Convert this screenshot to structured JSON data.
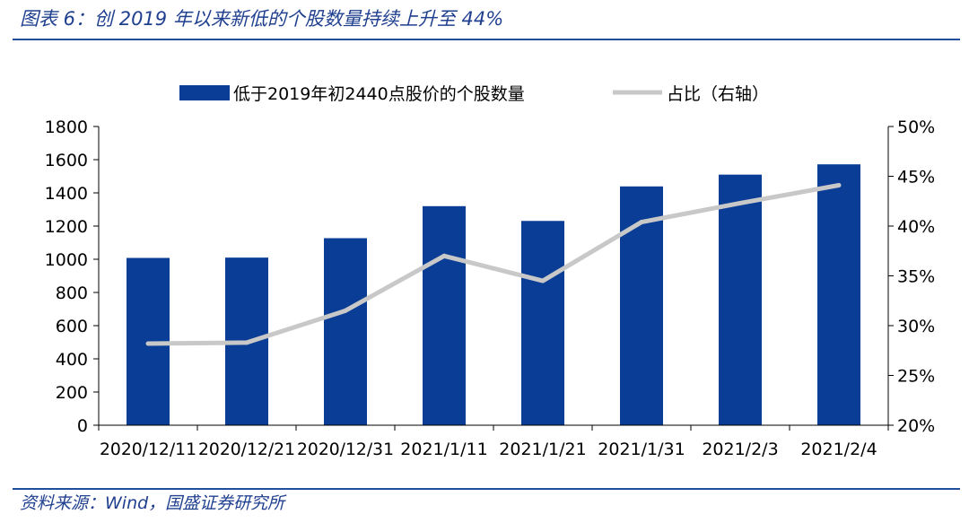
{
  "figure": {
    "title": "图表 6：创 2019 年以来新低的个股数量持续上升至 44%",
    "source": "资料来源：Wind，国盛证券研究所"
  },
  "colors": {
    "bar": "#0a3d96",
    "line": "#c8c8c8",
    "heading": "#1f3f8f",
    "rule": "#1f4e9a"
  },
  "chart_data": {
    "type": "bar",
    "categories": [
      "2020/12/11",
      "2020/12/21",
      "2020/12/31",
      "2021/1/11",
      "2021/1/21",
      "2021/1/31",
      "2021/2/3",
      "2021/2/4"
    ],
    "series": [
      {
        "name": "低于2019年初2440点股价的个股数量",
        "type": "bar",
        "axis": "left",
        "values": [
          1008,
          1010,
          1127,
          1320,
          1231,
          1439,
          1510,
          1572
        ]
      },
      {
        "name": "占比（右轴）",
        "type": "line",
        "axis": "right",
        "values": [
          28.2,
          28.3,
          31.5,
          37.0,
          34.5,
          40.4,
          42.3,
          44.1
        ]
      }
    ],
    "y_left": {
      "min": 0,
      "max": 1800,
      "ticks": [
        "0",
        "200",
        "400",
        "600",
        "800",
        "1000",
        "1200",
        "1400",
        "1600",
        "1800"
      ]
    },
    "y_right": {
      "min": 20,
      "max": 50,
      "ticks": [
        "20%",
        "25%",
        "30%",
        "35%",
        "40%",
        "45%",
        "50%"
      ]
    },
    "legend_position": "top-center",
    "grid": false
  }
}
